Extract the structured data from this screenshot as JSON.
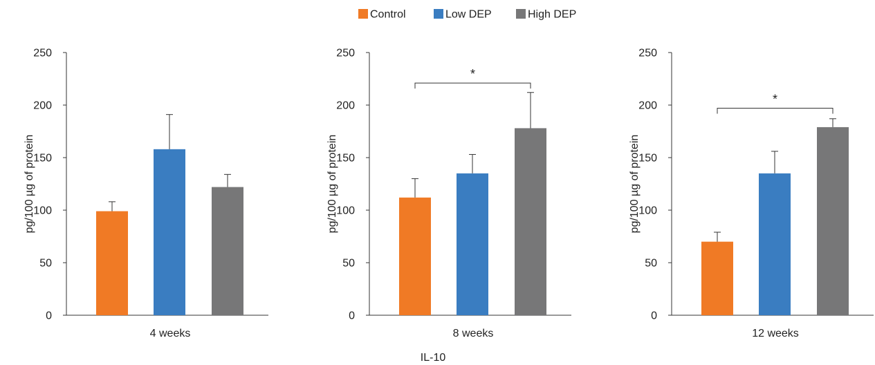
{
  "figure": {
    "caption": "IL-10"
  },
  "legend": [
    {
      "name": "Control",
      "color": "#f07a25"
    },
    {
      "name": "Low DEP",
      "color": "#3a7dc1"
    },
    {
      "name": "High DEP",
      "color": "#777778"
    }
  ],
  "chart_data": [
    {
      "type": "bar",
      "categories": [
        "Control",
        "Low DEP",
        "High DEP"
      ],
      "values": [
        99,
        158,
        122
      ],
      "error": [
        9,
        33,
        12
      ],
      "xlabel": "4 weeks",
      "ylabel": "pg/100 µg of protein",
      "ylim": [
        0,
        250
      ],
      "yticks": [
        0,
        50,
        100,
        150,
        200,
        250
      ],
      "significance": []
    },
    {
      "type": "bar",
      "categories": [
        "Control",
        "Low DEP",
        "High DEP"
      ],
      "values": [
        112,
        135,
        178
      ],
      "error": [
        18,
        18,
        34
      ],
      "xlabel": "8 weeks",
      "ylabel": "pg/100 µg of protein",
      "ylim": [
        0,
        250
      ],
      "yticks": [
        0,
        50,
        100,
        150,
        200,
        250
      ],
      "significance": [
        {
          "from": 0,
          "to": 2,
          "label": "*",
          "level": 221
        }
      ]
    },
    {
      "type": "bar",
      "categories": [
        "Control",
        "Low DEP",
        "High DEP"
      ],
      "values": [
        70,
        135,
        179
      ],
      "error": [
        9,
        21,
        8
      ],
      "xlabel": "12 weeks",
      "ylabel": "pg/100 µg of protein",
      "ylim": [
        0,
        250
      ],
      "yticks": [
        0,
        50,
        100,
        150,
        200,
        250
      ],
      "significance": [
        {
          "from": 0,
          "to": 2,
          "label": "*",
          "level": 197
        }
      ]
    }
  ]
}
